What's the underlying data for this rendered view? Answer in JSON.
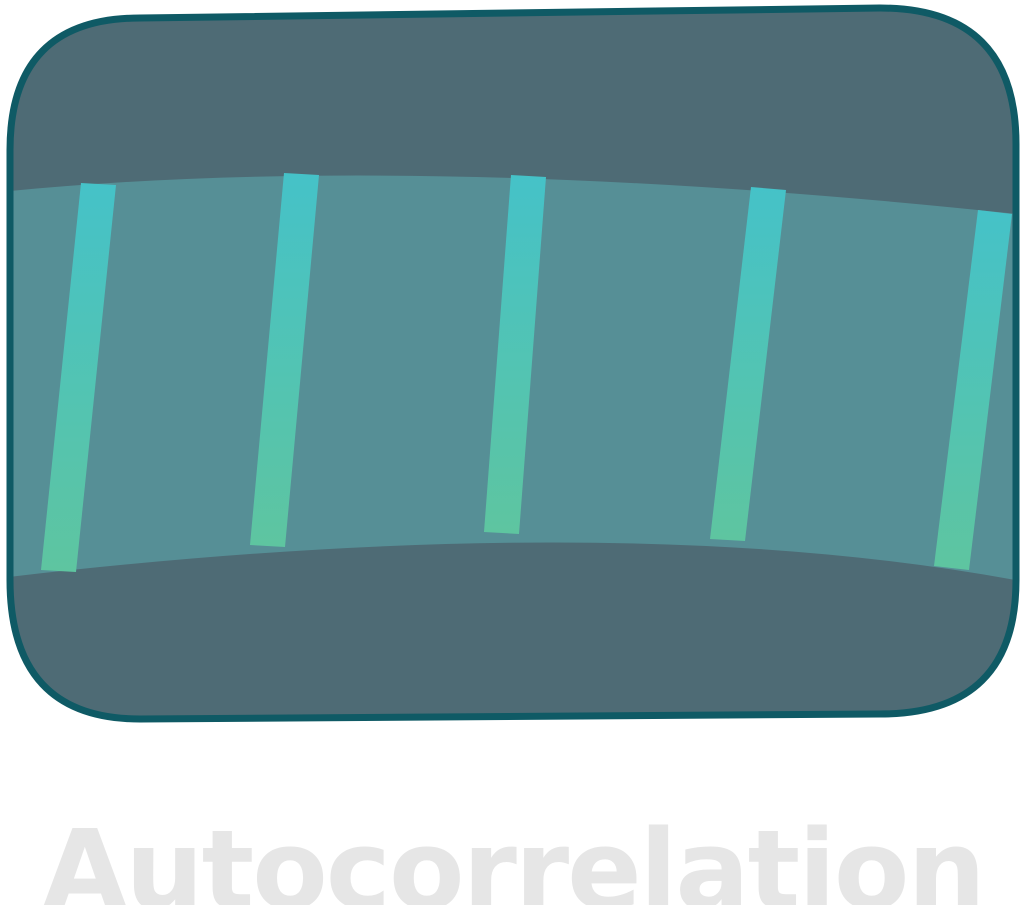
{
  "illustration": {
    "icon": "autocorrelation-icon",
    "colors": {
      "frame_border": "#0F5A65",
      "frame_fill": "#4E6B75",
      "band_fill": "#568F96",
      "stripe_top": "#45C2C8",
      "stripe_bottom": "#5EC5A0"
    }
  },
  "caption": {
    "text": "Autocorrelation",
    "color": "#E6E6E6"
  }
}
